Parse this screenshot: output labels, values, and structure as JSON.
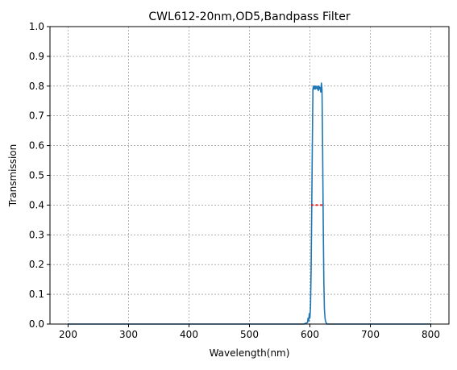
{
  "chart_data": {
    "type": "line",
    "title": "CWL612-20nm,OD5,Bandpass Filter",
    "xlabel": "Wavelength(nm)",
    "ylabel": "Transmission",
    "xlim": [
      170,
      830
    ],
    "ylim": [
      0,
      1
    ],
    "xticks": [
      200,
      300,
      400,
      500,
      600,
      700,
      800
    ],
    "yticks": [
      0.0,
      0.1,
      0.2,
      0.3,
      0.4,
      0.5,
      0.6,
      0.7,
      0.8,
      0.9,
      1.0
    ],
    "xtick_labels": [
      "200",
      "300",
      "400",
      "500",
      "600",
      "700",
      "800"
    ],
    "ytick_labels": [
      "0.0",
      "0.1",
      "0.2",
      "0.3",
      "0.4",
      "0.5",
      "0.6",
      "0.7",
      "0.8",
      "0.9",
      "1.0"
    ],
    "grid": true,
    "series": [
      {
        "color": "#1f77b4",
        "x": [
          200,
          300,
          400,
          500,
          590,
          596,
          597,
          598,
          599,
          600,
          601,
          602,
          603,
          604,
          605,
          606,
          607,
          608,
          609,
          610,
          611,
          612,
          613,
          614,
          615,
          616,
          617,
          618,
          619,
          620,
          621,
          622,
          623,
          624,
          625,
          626,
          628,
          630,
          700,
          800
        ],
        "y": [
          0.0,
          0.0,
          0.0,
          0.0,
          0.0,
          0.005,
          0.02,
          0.01,
          0.035,
          0.02,
          0.06,
          0.18,
          0.38,
          0.6,
          0.79,
          0.8,
          0.79,
          0.8,
          0.79,
          0.8,
          0.795,
          0.79,
          0.8,
          0.785,
          0.8,
          0.79,
          0.795,
          0.78,
          0.81,
          0.79,
          0.6,
          0.35,
          0.15,
          0.05,
          0.02,
          0.008,
          0.0,
          0.0,
          0.0,
          0.0
        ]
      },
      {
        "color": "#e31a1c",
        "style": "dotted",
        "x": [
          603,
          621
        ],
        "y": [
          0.4,
          0.4
        ]
      }
    ]
  }
}
